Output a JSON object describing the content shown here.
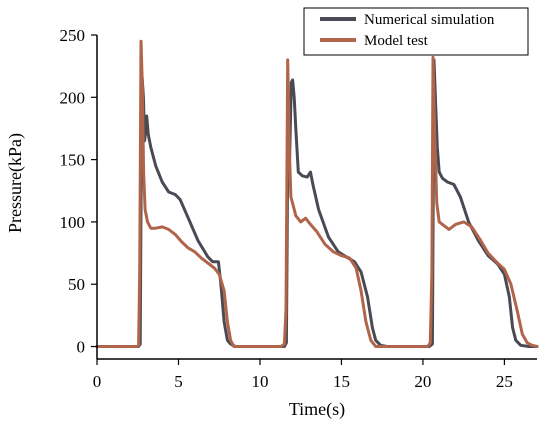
{
  "chart_data": {
    "type": "line",
    "xlabel": "Time(s)",
    "ylabel": "Pressure(kPa)",
    "xlim": [
      0,
      27
    ],
    "ylim": [
      -10,
      250
    ],
    "x_ticks": [
      0,
      5,
      10,
      15,
      20,
      25
    ],
    "y_ticks": [
      0,
      50,
      100,
      150,
      200,
      250
    ],
    "x_tick_labels": [
      "0",
      "5",
      "10",
      "15",
      "20",
      "25"
    ],
    "y_tick_labels": [
      "0",
      "50",
      "100",
      "150",
      "200",
      "250"
    ],
    "legend_position": "top-right",
    "grid": false,
    "series": [
      {
        "name": "Numerical simulation",
        "color": "#4a4a55",
        "points": [
          [
            0,
            0
          ],
          [
            2.55,
            0
          ],
          [
            2.65,
            2
          ],
          [
            2.75,
            220
          ],
          [
            2.85,
            200
          ],
          [
            2.92,
            165
          ],
          [
            3.0,
            175
          ],
          [
            3.05,
            185
          ],
          [
            3.15,
            170
          ],
          [
            3.3,
            160
          ],
          [
            3.6,
            145
          ],
          [
            4.0,
            132
          ],
          [
            4.4,
            124
          ],
          [
            4.8,
            122
          ],
          [
            5.1,
            118
          ],
          [
            5.6,
            103
          ],
          [
            6.2,
            85
          ],
          [
            6.8,
            72
          ],
          [
            7.1,
            68
          ],
          [
            7.3,
            68
          ],
          [
            7.45,
            68
          ],
          [
            7.6,
            50
          ],
          [
            7.8,
            20
          ],
          [
            8.0,
            5
          ],
          [
            8.2,
            2
          ],
          [
            8.5,
            0
          ],
          [
            11.5,
            0
          ],
          [
            11.62,
            3
          ],
          [
            11.72,
            180
          ],
          [
            11.82,
            150
          ],
          [
            11.92,
            212
          ],
          [
            12.0,
            214
          ],
          [
            12.1,
            200
          ],
          [
            12.2,
            175
          ],
          [
            12.35,
            140
          ],
          [
            12.6,
            137
          ],
          [
            12.9,
            136
          ],
          [
            13.1,
            140
          ],
          [
            13.25,
            130
          ],
          [
            13.6,
            110
          ],
          [
            14.2,
            88
          ],
          [
            14.8,
            76
          ],
          [
            15.3,
            72
          ],
          [
            15.8,
            68
          ],
          [
            16.2,
            60
          ],
          [
            16.6,
            40
          ],
          [
            16.9,
            15
          ],
          [
            17.1,
            5
          ],
          [
            17.4,
            1
          ],
          [
            17.8,
            0
          ],
          [
            20.4,
            0
          ],
          [
            20.58,
            2
          ],
          [
            20.68,
            230
          ],
          [
            20.78,
            195
          ],
          [
            20.88,
            160
          ],
          [
            21.0,
            140
          ],
          [
            21.2,
            135
          ],
          [
            21.5,
            132
          ],
          [
            21.9,
            130
          ],
          [
            22.3,
            120
          ],
          [
            22.8,
            100
          ],
          [
            23.4,
            85
          ],
          [
            24.0,
            73
          ],
          [
            24.6,
            66
          ],
          [
            25.0,
            58
          ],
          [
            25.3,
            40
          ],
          [
            25.5,
            15
          ],
          [
            25.7,
            5
          ],
          [
            26.0,
            1
          ],
          [
            26.5,
            0
          ],
          [
            27,
            0
          ]
        ]
      },
      {
        "name": "Model test",
        "color": "#b0654a",
        "points": [
          [
            0,
            0
          ],
          [
            2.45,
            0
          ],
          [
            2.55,
            1
          ],
          [
            2.62,
            60
          ],
          [
            2.7,
            245
          ],
          [
            2.78,
            210
          ],
          [
            2.86,
            140
          ],
          [
            2.95,
            110
          ],
          [
            3.1,
            100
          ],
          [
            3.3,
            95
          ],
          [
            3.6,
            95
          ],
          [
            4.0,
            96
          ],
          [
            4.4,
            94
          ],
          [
            4.8,
            90
          ],
          [
            5.2,
            84
          ],
          [
            5.6,
            79
          ],
          [
            6.0,
            76
          ],
          [
            6.4,
            71
          ],
          [
            6.8,
            67
          ],
          [
            7.2,
            63
          ],
          [
            7.5,
            58
          ],
          [
            7.8,
            45
          ],
          [
            8.0,
            20
          ],
          [
            8.2,
            5
          ],
          [
            8.4,
            0
          ],
          [
            9.0,
            0
          ],
          [
            10.0,
            0
          ],
          [
            11.3,
            0
          ],
          [
            11.5,
            2
          ],
          [
            11.6,
            30
          ],
          [
            11.7,
            230
          ],
          [
            11.8,
            160
          ],
          [
            11.9,
            120
          ],
          [
            12.0,
            115
          ],
          [
            12.2,
            105
          ],
          [
            12.5,
            100
          ],
          [
            12.8,
            103
          ],
          [
            13.1,
            98
          ],
          [
            13.5,
            92
          ],
          [
            14.0,
            82
          ],
          [
            14.5,
            76
          ],
          [
            15.0,
            73
          ],
          [
            15.5,
            71
          ],
          [
            15.9,
            63
          ],
          [
            16.2,
            45
          ],
          [
            16.5,
            20
          ],
          [
            16.8,
            5
          ],
          [
            17.1,
            0
          ],
          [
            18.5,
            0
          ],
          [
            20.3,
            0
          ],
          [
            20.45,
            3
          ],
          [
            20.55,
            60
          ],
          [
            20.62,
            232
          ],
          [
            20.72,
            170
          ],
          [
            20.85,
            115
          ],
          [
            21.0,
            100
          ],
          [
            21.3,
            97
          ],
          [
            21.6,
            94
          ],
          [
            22.0,
            98
          ],
          [
            22.5,
            100
          ],
          [
            23.0,
            96
          ],
          [
            23.5,
            86
          ],
          [
            24.0,
            75
          ],
          [
            24.5,
            68
          ],
          [
            25.0,
            62
          ],
          [
            25.4,
            50
          ],
          [
            25.8,
            28
          ],
          [
            26.1,
            10
          ],
          [
            26.4,
            3
          ],
          [
            26.7,
            1
          ],
          [
            27,
            0
          ]
        ]
      }
    ]
  }
}
